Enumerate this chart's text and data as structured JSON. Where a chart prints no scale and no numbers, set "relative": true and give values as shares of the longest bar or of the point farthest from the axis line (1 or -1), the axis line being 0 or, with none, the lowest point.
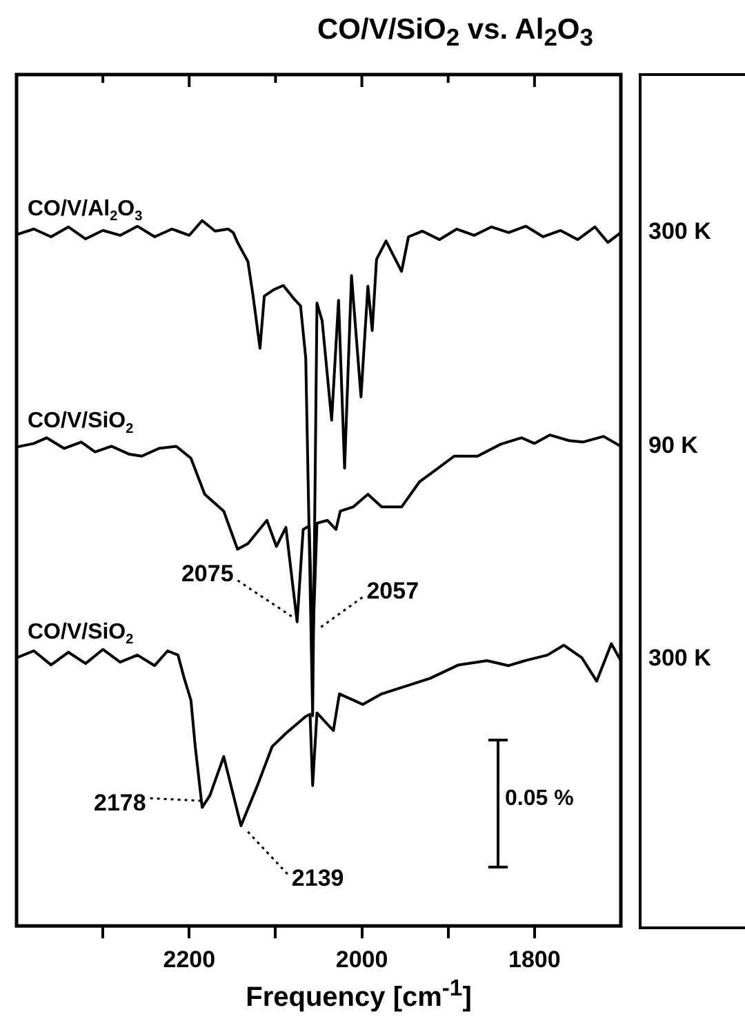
{
  "chart_data": {
    "type": "line",
    "title": "CO/V/SiO$_{2}$ vs. Al$_{2}$O$_{3}$",
    "xlabel": "Frequency [cm$^{-1}$]",
    "relative": true,
    "legend": false,
    "grid": false,
    "marker": "none",
    "line_style": "solid",
    "tick_labels": "x",
    "xlim": [
      2400,
      1700
    ],
    "xticks": [
      {
        "value": 2300,
        "label": null
      },
      2200,
      {
        "value": 2100,
        "label": null
      },
      2000,
      {
        "value": 1900,
        "label": null
      },
      1800
    ],
    "annotations": [
      "300 K",
      "90 K",
      "300 K",
      "0.05 %",
      {
        "text": "2075",
        "x": 2075,
        "y": 0.431
      },
      {
        "text": "2057",
        "x": 2057,
        "y": 0.413
      },
      {
        "text": "2178",
        "x": 2178,
        "y": 0.185
      },
      {
        "text": "2139",
        "x": 2139,
        "y": 0.142
      }
    ],
    "series": [
      {
        "name": "CO/V/Al$_{2}$O$_{3}$",
        "color": "#000000",
        "x": [
          2400,
          2380,
          2360,
          2340,
          2320,
          2300,
          2280,
          2260,
          2240,
          2220,
          2200,
          2185,
          2170,
          2155,
          2149,
          2144,
          2132,
          2126,
          2118,
          2113,
          2102,
          2091,
          2080,
          2071,
          2065,
          2057,
          2052,
          2046,
          2035,
          2027,
          2020,
          2012,
          2001,
          1993,
          1988,
          1983,
          1972,
          1954,
          1946,
          1930,
          1910,
          1890,
          1870,
          1850,
          1830,
          1810,
          1790,
          1770,
          1750,
          1730,
          1715,
          1700
        ],
        "values": [
          0.98,
          0.988,
          0.977,
          0.991,
          0.974,
          0.986,
          0.979,
          0.992,
          0.977,
          0.988,
          0.979,
          1,
          0.985,
          0.988,
          0.983,
          0.969,
          0.942,
          0.893,
          0.819,
          0.893,
          0.902,
          0.908,
          0.891,
          0.879,
          0.805,
          0.298,
          0.883,
          0.858,
          0.717,
          0.887,
          0.649,
          0.922,
          0.75,
          0.907,
          0.844,
          0.945,
          0.971,
          0.928,
          0.977,
          0.985,
          0.973,
          0.988,
          0.979,
          0.991,
          0.983,
          0.992,
          0.977,
          0.986,
          0.973,
          0.991,
          0.969,
          0.983
        ]
      },
      {
        "name": "CO/V/SiO$_{2}$",
        "color": "#000000",
        "x": [
          2400,
          2380,
          2365,
          2345,
          2325,
          2309,
          2290,
          2270,
          2255,
          2235,
          2215,
          2198,
          2182,
          2160,
          2144,
          2132,
          2110,
          2099,
          2088,
          2075,
          2068,
          2061,
          2057,
          2052,
          2040,
          2030,
          2025,
          2010,
          1993,
          1977,
          1954,
          1933,
          1916,
          1893,
          1866,
          1839,
          1815,
          1800,
          1782,
          1760,
          1744,
          1720,
          1700
        ],
        "values": [
          0.679,
          0.684,
          0.692,
          0.677,
          0.686,
          0.672,
          0.68,
          0.669,
          0.666,
          0.677,
          0.68,
          0.663,
          0.612,
          0.588,
          0.534,
          0.542,
          0.575,
          0.538,
          0.565,
          0.431,
          0.562,
          0.567,
          0.395,
          0.571,
          0.575,
          0.562,
          0.588,
          0.594,
          0.612,
          0.594,
          0.594,
          0.63,
          0.645,
          0.666,
          0.666,
          0.683,
          0.692,
          0.684,
          0.696,
          0.688,
          0.686,
          0.694,
          0.68
        ]
      },
      {
        "name": "CO/V/SiO$_{2}$",
        "color": "#000000",
        "x": [
          2400,
          2380,
          2360,
          2340,
          2320,
          2300,
          2280,
          2260,
          2240,
          2225,
          2213,
          2206,
          2198,
          2193,
          2185,
          2176,
          2160,
          2140,
          2121,
          2104,
          2088,
          2065,
          2060,
          2057,
          2052,
          2040,
          2033,
          2026,
          1999,
          1977,
          1949,
          1921,
          1888,
          1855,
          1830,
          1811,
          1785,
          1766,
          1745,
          1728,
          1711,
          1700
        ],
        "values": [
          0.38,
          0.39,
          0.37,
          0.388,
          0.372,
          0.392,
          0.374,
          0.384,
          0.369,
          0.39,
          0.384,
          0.352,
          0.32,
          0.254,
          0.168,
          0.185,
          0.24,
          0.142,
          0.199,
          0.254,
          0.273,
          0.297,
          0.3,
          0.199,
          0.302,
          0.286,
          0.277,
          0.329,
          0.314,
          0.329,
          0.34,
          0.351,
          0.37,
          0.376,
          0.369,
          0.376,
          0.384,
          0.398,
          0.38,
          0.347,
          0.4,
          0.376
        ]
      }
    ]
  }
}
